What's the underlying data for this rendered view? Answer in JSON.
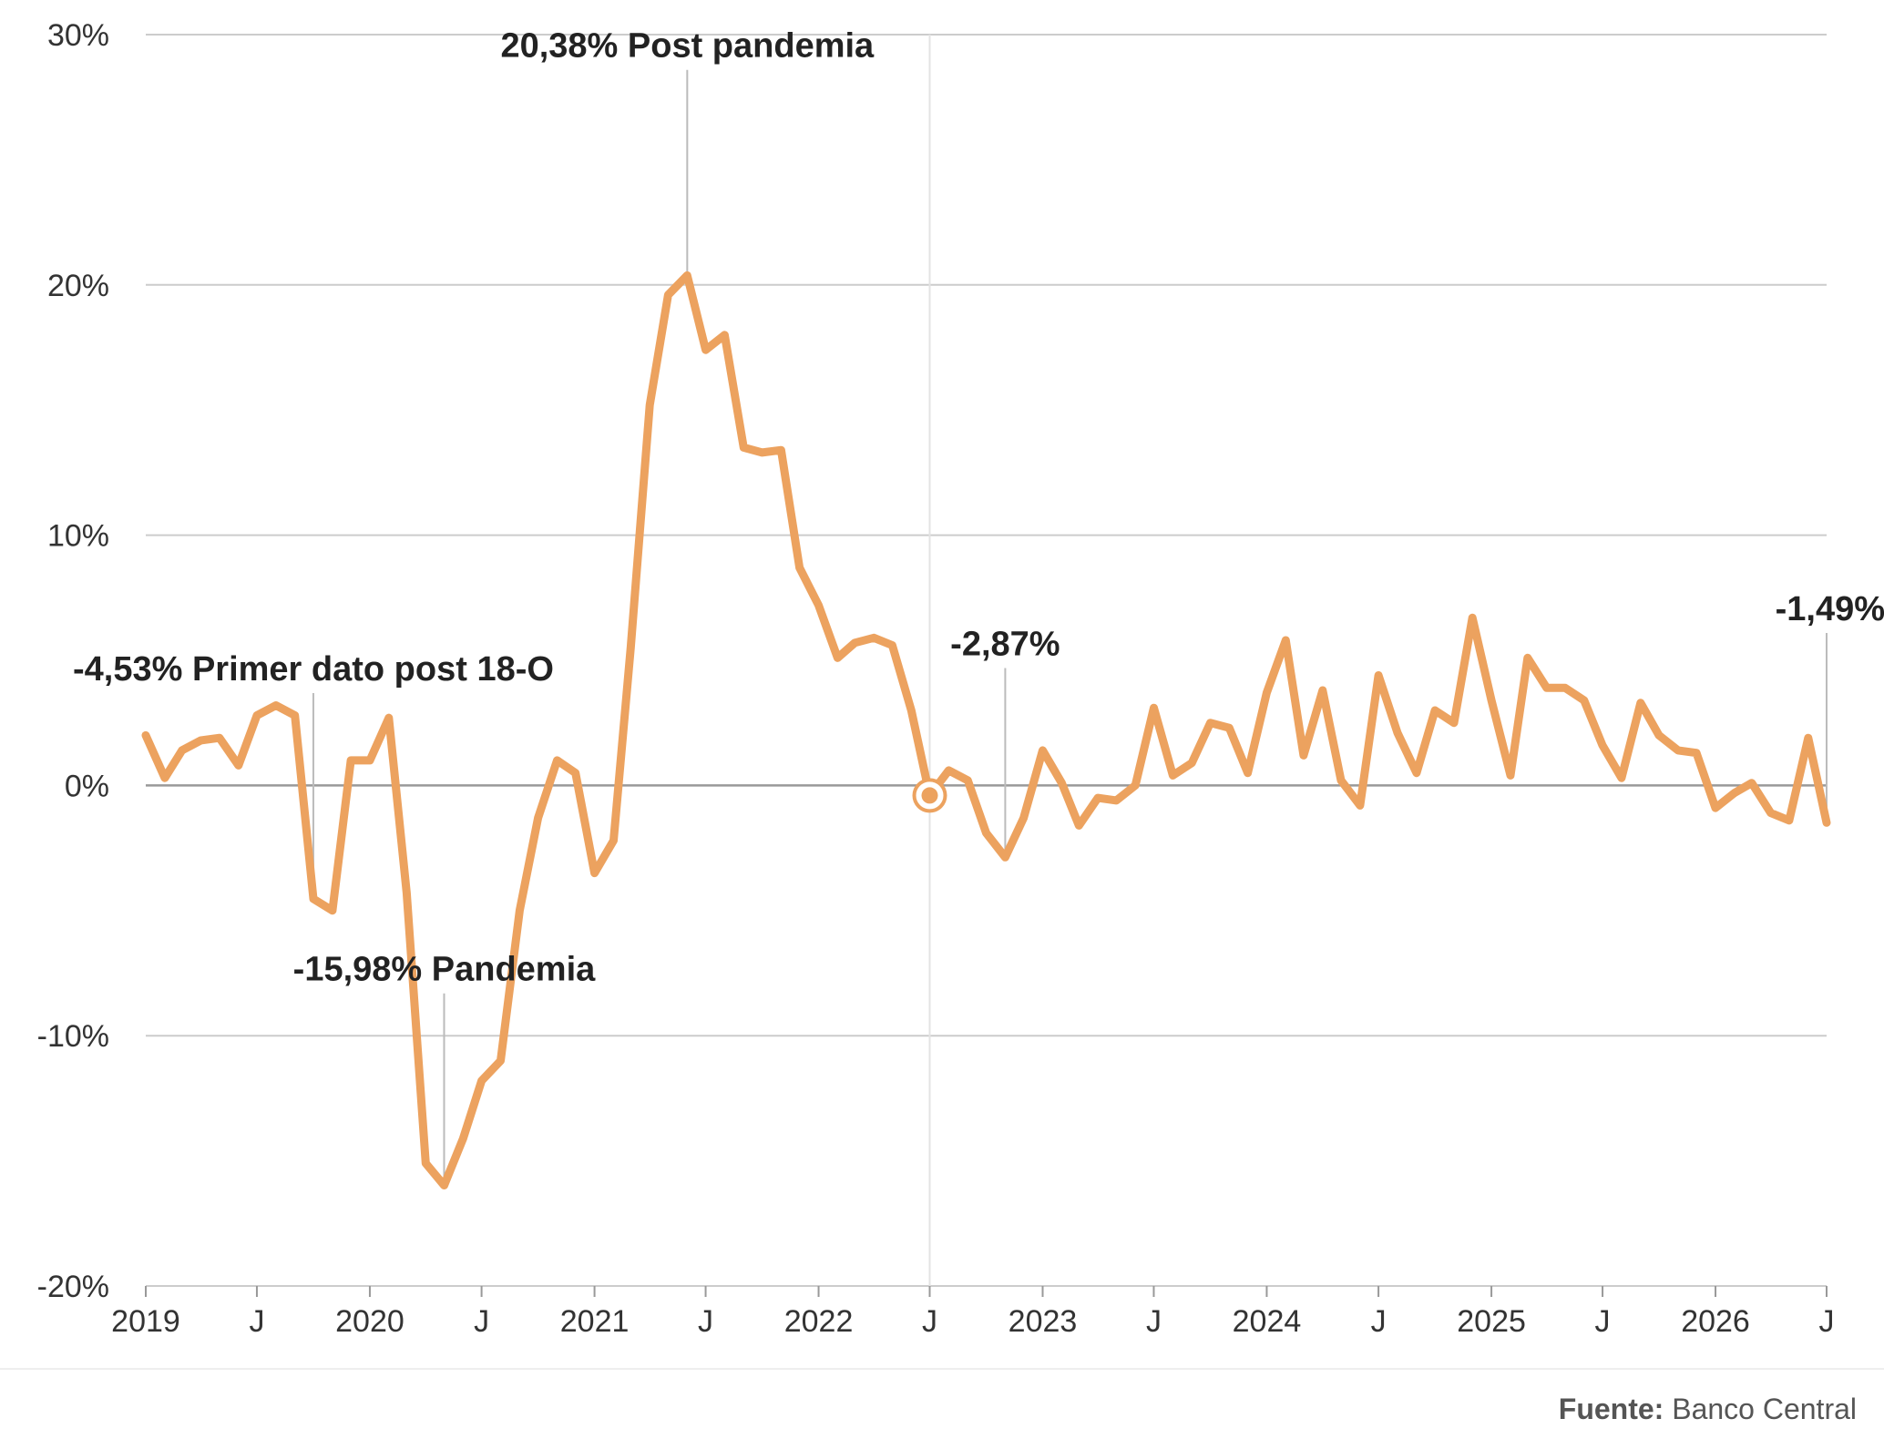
{
  "chart_data": {
    "type": "line",
    "ylim": [
      -20,
      30
    ],
    "yticks": [
      {
        "value": 30,
        "label": "30%"
      },
      {
        "value": 20,
        "label": "20%"
      },
      {
        "value": 10,
        "label": "10%"
      },
      {
        "value": 0,
        "label": "0%"
      },
      {
        "value": -10,
        "label": "-10%"
      },
      {
        "value": -20,
        "label": "-20%"
      }
    ],
    "xticks": [
      {
        "date": "2019-01",
        "label": "2019"
      },
      {
        "date": "2019-07",
        "label": "J"
      },
      {
        "date": "2020-01",
        "label": "2020"
      },
      {
        "date": "2020-07",
        "label": "J"
      },
      {
        "date": "2021-01",
        "label": "2021"
      },
      {
        "date": "2021-07",
        "label": "J"
      },
      {
        "date": "2022-01",
        "label": "2022"
      },
      {
        "date": "2022-07",
        "label": "J"
      },
      {
        "date": "2023-01",
        "label": "2023"
      },
      {
        "date": "2023-07",
        "label": "J"
      },
      {
        "date": "2024-01",
        "label": "2024"
      },
      {
        "date": "2024-07",
        "label": "J"
      },
      {
        "date": "2025-01",
        "label": "2025"
      },
      {
        "date": "2025-07",
        "label": "J"
      },
      {
        "date": "2026-01",
        "label": "2026"
      },
      {
        "date": "2026-07",
        "label": "J"
      }
    ],
    "series": [
      {
        "color": "#eca25f",
        "x": [
          "2019-01",
          "2019-02",
          "2019-03",
          "2019-04",
          "2019-05",
          "2019-06",
          "2019-07",
          "2019-08",
          "2019-09",
          "2019-10",
          "2019-11",
          "2019-12",
          "2020-01",
          "2020-02",
          "2020-03",
          "2020-04",
          "2020-05",
          "2020-06",
          "2020-07",
          "2020-08",
          "2020-09",
          "2020-10",
          "2020-11",
          "2020-12",
          "2021-01",
          "2021-02",
          "2021-03",
          "2021-04",
          "2021-05",
          "2021-06",
          "2021-07",
          "2021-08",
          "2021-09",
          "2021-10",
          "2021-11",
          "2021-12",
          "2022-01",
          "2022-02",
          "2022-03",
          "2022-04",
          "2022-05",
          "2022-06",
          "2022-07",
          "2022-08",
          "2022-09",
          "2022-10",
          "2022-11",
          "2022-12",
          "2023-01",
          "2023-02",
          "2023-03",
          "2023-04",
          "2023-05",
          "2023-06",
          "2023-07",
          "2023-08",
          "2023-09",
          "2023-10",
          "2023-11",
          "2023-12",
          "2024-01",
          "2024-02",
          "2024-03",
          "2024-04",
          "2024-05",
          "2024-06",
          "2024-07",
          "2024-08",
          "2024-09",
          "2024-10",
          "2024-11",
          "2024-12",
          "2025-01",
          "2025-02",
          "2025-03",
          "2025-04",
          "2025-05",
          "2025-06",
          "2025-07",
          "2025-08",
          "2025-09",
          "2025-10",
          "2025-11",
          "2025-12",
          "2026-01",
          "2026-02",
          "2026-03",
          "2026-04",
          "2026-05",
          "2026-06",
          "2026-07"
        ],
        "values": [
          2.0,
          0.3,
          1.4,
          1.8,
          1.9,
          0.8,
          2.8,
          3.2,
          2.8,
          -4.53,
          -5.0,
          1.0,
          1.0,
          2.7,
          -4.3,
          -15.1,
          -15.98,
          -14.1,
          -11.8,
          -11.0,
          -5.0,
          -1.3,
          1.0,
          0.5,
          -3.5,
          -2.2,
          5.5,
          15.2,
          19.6,
          20.38,
          17.4,
          18.0,
          13.5,
          13.3,
          13.4,
          8.7,
          7.2,
          5.1,
          5.7,
          5.9,
          5.6,
          3.0,
          -0.4,
          0.6,
          0.2,
          -1.9,
          -2.87,
          -1.3,
          1.4,
          0.1,
          -1.6,
          -0.5,
          -0.6,
          0.0,
          3.1,
          0.4,
          0.9,
          2.5,
          2.3,
          0.5,
          3.7,
          5.8,
          1.2,
          3.8,
          0.2,
          -0.8,
          4.4,
          2.1,
          0.5,
          3.0,
          2.5,
          6.7,
          3.4,
          0.4,
          5.1,
          3.9,
          3.9,
          3.4,
          1.6,
          0.3,
          3.3,
          2.0,
          1.4,
          1.3,
          -0.9,
          -0.3,
          0.1,
          -1.1,
          -1.4,
          1.9,
          -1.49
        ]
      }
    ],
    "annotations": [
      {
        "text": "20,38% Post pandemia",
        "date": "2021-06",
        "value": 20.38,
        "anchor": "middle",
        "label_value": 29.1
      },
      {
        "text": "-4,53% Primer dato post 18-O",
        "date": "2019-10",
        "value": -4.53,
        "anchor": "middle",
        "label_value": 4.2
      },
      {
        "text": "-15,98% Pandemia",
        "date": "2020-05",
        "value": -15.98,
        "anchor": "middle",
        "label_value": -7.8
      },
      {
        "text": "-2,87%",
        "date": "2022-11",
        "value": -2.87,
        "anchor": "middle",
        "label_value": 5.2
      },
      {
        "text": "-1,49%",
        "date": "2026-07",
        "value": -1.49,
        "anchor": "end",
        "label_value": 6.6
      }
    ],
    "highlight_point": {
      "date": "2022-07",
      "value": -0.4
    }
  },
  "footer": {
    "source_label": "Fuente:",
    "source_value": "Banco Central"
  },
  "colors": {
    "line": "#eca25f",
    "grid": "#cccccc",
    "zero_line": "#999999",
    "text": "#333333"
  }
}
